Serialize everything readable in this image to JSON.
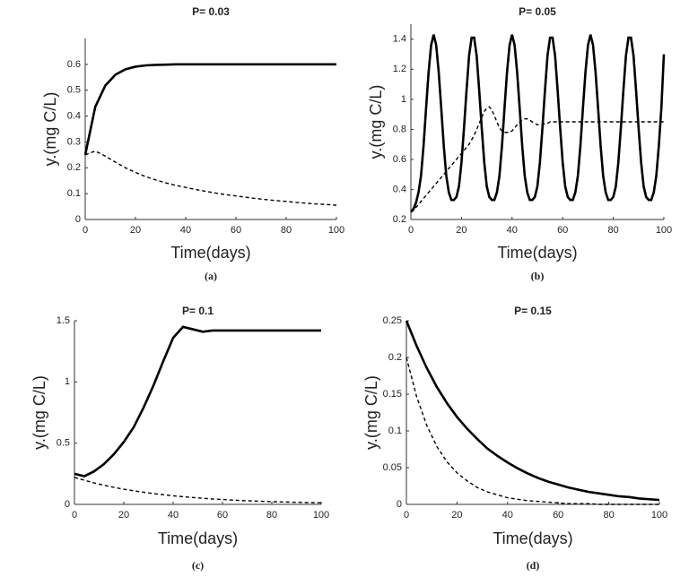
{
  "chart_data": [
    {
      "type": "line",
      "title": "P= 0.03",
      "x_label": "Time(days)",
      "y_label": "y.(mg C/L)",
      "caption": "(a)",
      "x": [
        0,
        4,
        8,
        12,
        16,
        20,
        24,
        28,
        32,
        36,
        40,
        44,
        48,
        52,
        56,
        60,
        64,
        68,
        72,
        76,
        80,
        84,
        88,
        92,
        96,
        100
      ],
      "series": [
        {
          "color": "#000000",
          "linestyle": "solid",
          "values": [
            0.25,
            0.436,
            0.518,
            0.56,
            0.581,
            0.591,
            0.596,
            0.598,
            0.599,
            0.6,
            0.6,
            0.6,
            0.6,
            0.6,
            0.6,
            0.6,
            0.6,
            0.6,
            0.6,
            0.6,
            0.6,
            0.6,
            0.6,
            0.6,
            0.6,
            0.6
          ]
        },
        {
          "color": "#000000",
          "linestyle": "dashed",
          "values": [
            0.25,
            0.265,
            0.245,
            0.222,
            0.2,
            0.182,
            0.166,
            0.153,
            0.142,
            0.132,
            0.124,
            0.116,
            0.109,
            0.102,
            0.096,
            0.091,
            0.086,
            0.081,
            0.077,
            0.073,
            0.07,
            0.066,
            0.063,
            0.06,
            0.058,
            0.055
          ]
        }
      ],
      "xlim": [
        0,
        100
      ],
      "xticks": [
        0,
        20,
        40,
        60,
        80,
        100
      ],
      "ylim": [
        0,
        0.7
      ],
      "yticks": [
        0,
        0.1,
        0.2,
        0.3,
        0.4,
        0.5,
        0.6
      ]
    },
    {
      "type": "line",
      "title": "P= 0.05",
      "x_label": "Time(days)",
      "y_label": "y.(mg C/L)",
      "caption": "(b)",
      "x": [
        0,
        1,
        2,
        3,
        4,
        5,
        6,
        7,
        8,
        9,
        10,
        11,
        12,
        13,
        14,
        15,
        16,
        17,
        18,
        19,
        20,
        21,
        22,
        23,
        24,
        25,
        26,
        27,
        28,
        29,
        30,
        31,
        32,
        33,
        34,
        35,
        36,
        37,
        38,
        39,
        40,
        41,
        42,
        43,
        44,
        45,
        46,
        47,
        48,
        49,
        50,
        51,
        52,
        53,
        54,
        55,
        56,
        57,
        58,
        59,
        60,
        61,
        62,
        63,
        64,
        65,
        66,
        67,
        68,
        69,
        70,
        71,
        72,
        73,
        74,
        75,
        76,
        77,
        78,
        79,
        80,
        81,
        82,
        83,
        84,
        85,
        86,
        87,
        88,
        89,
        90,
        91,
        92,
        93,
        94,
        95,
        96,
        97,
        98,
        99,
        100
      ],
      "series": [
        {
          "color": "#000000",
          "linestyle": "solid",
          "values": [
            0.25,
            0.27,
            0.31,
            0.38,
            0.49,
            0.69,
            0.94,
            1.18,
            1.36,
            1.43,
            1.36,
            1.18,
            0.94,
            0.69,
            0.49,
            0.38,
            0.33,
            0.33,
            0.35,
            0.42,
            0.58,
            0.81,
            1.06,
            1.29,
            1.41,
            1.41,
            1.29,
            1.06,
            0.81,
            0.58,
            0.42,
            0.35,
            0.33,
            0.33,
            0.38,
            0.49,
            0.69,
            0.94,
            1.18,
            1.36,
            1.43,
            1.36,
            1.18,
            0.94,
            0.69,
            0.49,
            0.38,
            0.33,
            0.33,
            0.35,
            0.42,
            0.58,
            0.81,
            1.06,
            1.29,
            1.41,
            1.41,
            1.29,
            1.06,
            0.81,
            0.58,
            0.42,
            0.35,
            0.33,
            0.33,
            0.38,
            0.49,
            0.69,
            0.94,
            1.18,
            1.36,
            1.43,
            1.36,
            1.18,
            0.94,
            0.69,
            0.49,
            0.38,
            0.33,
            0.33,
            0.35,
            0.42,
            0.58,
            0.81,
            1.06,
            1.29,
            1.41,
            1.41,
            1.29,
            1.06,
            0.81,
            0.58,
            0.42,
            0.35,
            0.33,
            0.33,
            0.38,
            0.49,
            0.69,
            0.94,
            1.3
          ]
        },
        {
          "color": "#000000",
          "linestyle": "dashed",
          "values": [
            0.25,
            0.26,
            0.28,
            0.3,
            0.32,
            0.34,
            0.36,
            0.38,
            0.4,
            0.42,
            0.44,
            0.46,
            0.48,
            0.5,
            0.52,
            0.54,
            0.56,
            0.58,
            0.6,
            0.62,
            0.64,
            0.66,
            0.68,
            0.7,
            0.73,
            0.76,
            0.8,
            0.84,
            0.88,
            0.92,
            0.94,
            0.95,
            0.93,
            0.89,
            0.85,
            0.81,
            0.79,
            0.78,
            0.78,
            0.78,
            0.79,
            0.81,
            0.83,
            0.85,
            0.86,
            0.87,
            0.87,
            0.86,
            0.85,
            0.84,
            0.83,
            0.83,
            0.83,
            0.84,
            0.84,
            0.85,
            0.85,
            0.85,
            0.85,
            0.85,
            0.85,
            0.85,
            0.85,
            0.85,
            0.85,
            0.85,
            0.85,
            0.85,
            0.85,
            0.85,
            0.85,
            0.85,
            0.85,
            0.85,
            0.85,
            0.85,
            0.85,
            0.85,
            0.85,
            0.85,
            0.85,
            0.85,
            0.85,
            0.85,
            0.85,
            0.85,
            0.85,
            0.85,
            0.85,
            0.85,
            0.85,
            0.85,
            0.85,
            0.85,
            0.85,
            0.85,
            0.85,
            0.85,
            0.85,
            0.85,
            0.85
          ]
        }
      ],
      "xlim": [
        0,
        100
      ],
      "xticks": [
        0,
        20,
        40,
        60,
        80,
        100
      ],
      "ylim": [
        0.2,
        1.5
      ],
      "yticks": [
        0.2,
        0.4,
        0.6,
        0.8,
        1,
        1.2,
        1.4
      ]
    },
    {
      "type": "line",
      "title": "P= 0.1",
      "x_label": "Time(days)",
      "y_label": "y.(mg C/L)",
      "caption": "(c)",
      "x": [
        0,
        4,
        8,
        12,
        16,
        20,
        24,
        28,
        32,
        36,
        40,
        44,
        48,
        52,
        56,
        60,
        64,
        68,
        72,
        76,
        80,
        84,
        88,
        92,
        96,
        100
      ],
      "series": [
        {
          "color": "#000000",
          "linestyle": "solid",
          "values": [
            0.25,
            0.23,
            0.27,
            0.33,
            0.41,
            0.51,
            0.63,
            0.79,
            0.97,
            1.17,
            1.36,
            1.45,
            1.43,
            1.41,
            1.42,
            1.42,
            1.42,
            1.42,
            1.42,
            1.42,
            1.42,
            1.42,
            1.42,
            1.42,
            1.42,
            1.42
          ]
        },
        {
          "color": "#000000",
          "linestyle": "dashed",
          "values": [
            0.22,
            0.197,
            0.175,
            0.156,
            0.139,
            0.124,
            0.111,
            0.099,
            0.088,
            0.079,
            0.07,
            0.063,
            0.056,
            0.05,
            0.044,
            0.04,
            0.035,
            0.031,
            0.028,
            0.025,
            0.022,
            0.02,
            0.018,
            0.016,
            0.014,
            0.013
          ]
        }
      ],
      "xlim": [
        0,
        100
      ],
      "xticks": [
        0,
        20,
        40,
        60,
        80,
        100
      ],
      "ylim": [
        0,
        1.5
      ],
      "yticks": [
        0,
        0.5,
        1,
        1.5
      ]
    },
    {
      "type": "line",
      "title": "P= 0.15",
      "x_label": "Time(days)",
      "y_label": "y.(mg C/L)",
      "caption": "(d)",
      "x": [
        0,
        4,
        8,
        12,
        16,
        20,
        24,
        28,
        32,
        36,
        40,
        44,
        48,
        52,
        56,
        60,
        64,
        68,
        72,
        76,
        80,
        84,
        88,
        92,
        96,
        100
      ],
      "series": [
        {
          "color": "#000000",
          "linestyle": "solid",
          "values": [
            0.25,
            0.216,
            0.186,
            0.16,
            0.138,
            0.119,
            0.103,
            0.089,
            0.076,
            0.066,
            0.057,
            0.049,
            0.042,
            0.036,
            0.031,
            0.027,
            0.023,
            0.02,
            0.017,
            0.015,
            0.013,
            0.011,
            0.01,
            0.008,
            0.007,
            0.006
          ]
        },
        {
          "color": "#000000",
          "linestyle": "dashed",
          "values": [
            0.2,
            0.147,
            0.108,
            0.079,
            0.058,
            0.043,
            0.032,
            0.023,
            0.017,
            0.013,
            0.009,
            0.007,
            0.005,
            0.004,
            0.003,
            0.002,
            0.001,
            0.001,
            0.001,
            0,
            0,
            0,
            0,
            0,
            0,
            0
          ]
        }
      ],
      "xlim": [
        0,
        100
      ],
      "xticks": [
        0,
        20,
        40,
        60,
        80,
        100
      ],
      "ylim": [
        0,
        0.25
      ],
      "yticks": [
        0,
        0.05,
        0.1,
        0.15,
        0.2,
        0.25
      ]
    }
  ]
}
